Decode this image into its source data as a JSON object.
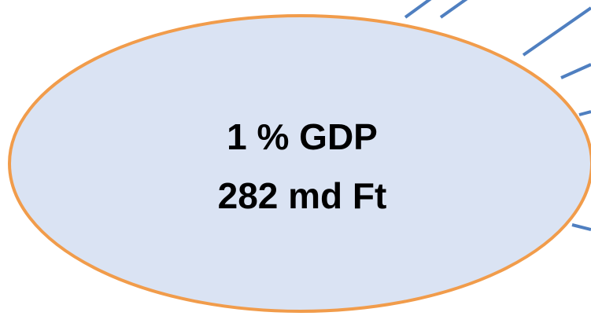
{
  "diagram": {
    "center_text": {
      "line1": "1 % GDP",
      "line2": "282 md Ft"
    },
    "colors": {
      "ellipse_fill": "#dae3f3",
      "ellipse_stroke": "#f19c4b",
      "connector": "#4f7fc0",
      "text": "#000000"
    }
  }
}
